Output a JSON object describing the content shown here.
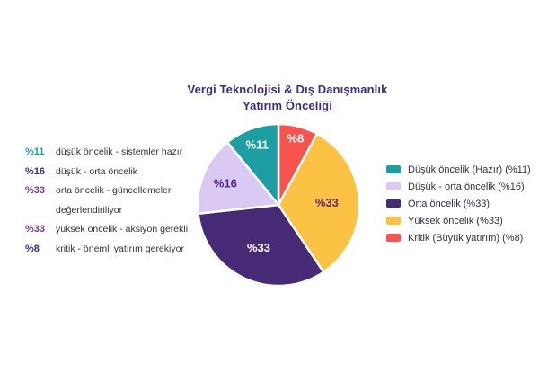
{
  "title": {
    "line1": "Vergi Teknolojisi & Dış Danışmanlık",
    "line2": "Yatırım Önceliği"
  },
  "notes": [
    {
      "value": "%11",
      "value_color": "#1D9EA3",
      "text": "düşük öncelik - sistemler hazır"
    },
    {
      "value": "%16",
      "value_color": "#312E7C",
      "text": "düşük - orta öncelik"
    },
    {
      "value": "%33",
      "value_color": "#6F3A99",
      "text": "orta öncelik - güncellemeler değerlendiriliyor"
    },
    {
      "value": "%33",
      "value_color": "#6F3A99",
      "text": "yüksek öncelik - aksiyon gerekli"
    },
    {
      "value": "%8",
      "value_color": "#312E7C",
      "text": "kritik - önemli yatırım gerekiyor"
    }
  ],
  "chart_data": {
    "type": "pie",
    "title": "Vergi Teknolojisi & Dış Danışmanlık Yatırım Önceliği",
    "start_angle_deg": 0,
    "direction": "clockwise",
    "legend_position": "right",
    "slices": [
      {
        "label": "Kritik (Büyük yatırım)",
        "value": 8,
        "display": "%8",
        "color": "#F8534E",
        "label_color": "#FFFFFF",
        "label_r": 0.85
      },
      {
        "label": "Yüksek öncelik",
        "value": 33,
        "display": "%33",
        "color": "#FBC244",
        "label_color": "#662A60",
        "label_r": 0.6
      },
      {
        "label": "Orta öncelik",
        "value": 33,
        "display": "%33",
        "color": "#472A75",
        "label_color": "#FFFFFF",
        "label_r": 0.58
      },
      {
        "label": "Düşük - orta öncelik",
        "value": 16,
        "display": "%16",
        "color": "#D9C9F3",
        "label_color": "#4E2B7E",
        "label_r": 0.71
      },
      {
        "label": "Düşük öncelik (Hazır)",
        "value": 11,
        "display": "%11",
        "color": "#1D9EA3",
        "label_color": "#FFFFFF",
        "label_r": 0.79
      }
    ]
  },
  "legend": {
    "items": [
      {
        "label": "Düşük öncelik (Hazır) (%11)",
        "color": "#1D9EA3"
      },
      {
        "label": "Düşük - orta öncelik (%16)",
        "color": "#D9C9F3"
      },
      {
        "label": "Orta öncelik (%33)",
        "color": "#472A75"
      },
      {
        "label": "Yüksek öncelik (%33)",
        "color": "#FBC244"
      },
      {
        "label": "Kritik (Büyük yatırım) (%8)",
        "color": "#F8534E"
      }
    ]
  }
}
